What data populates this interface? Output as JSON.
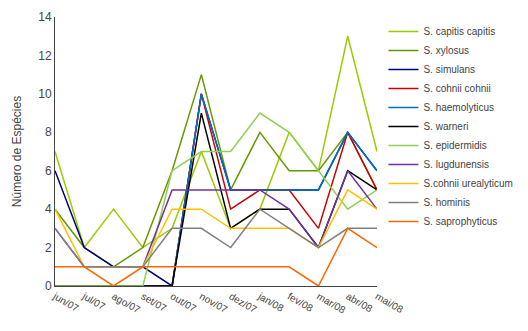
{
  "chart_data": {
    "type": "line",
    "categories": [
      "jun/07",
      "jul/07",
      "ago/07",
      "set/07",
      "out/07",
      "nov/07",
      "dez/07",
      "jan/08",
      "fev/08",
      "mar/08",
      "abr/08",
      "mai/08"
    ],
    "series": [
      {
        "name": "S. capitis capitis",
        "color": "#99cc00",
        "values": [
          7,
          2,
          4,
          2,
          3,
          7,
          3,
          4,
          8,
          6,
          13,
          7
        ]
      },
      {
        "name": "S. xylosus",
        "color": "#669900",
        "values": [
          4,
          2,
          1,
          2,
          6,
          11,
          5,
          8,
          6,
          6,
          8,
          5
        ]
      },
      {
        "name": "S. simulans",
        "color": "#000080",
        "values": [
          6,
          2,
          1,
          1,
          0,
          10,
          5,
          5,
          5,
          5,
          8,
          6
        ]
      },
      {
        "name": "S. cohnii cohnii",
        "color": "#cc0000",
        "values": [
          0,
          0,
          0,
          0,
          0,
          10,
          4,
          5,
          5,
          3,
          8,
          5
        ]
      },
      {
        "name": "S. haemolyticus",
        "color": "#0070c0",
        "values": [
          0,
          0,
          0,
          0,
          0,
          10,
          5,
          5,
          5,
          5,
          8,
          6
        ]
      },
      {
        "name": "S. warneri",
        "color": "#000000",
        "values": [
          0,
          0,
          0,
          0,
          0,
          9,
          3,
          4,
          4,
          2,
          6,
          5
        ]
      },
      {
        "name": "S. epidermidis",
        "color": "#92d050",
        "values": [
          0,
          0,
          0,
          0,
          6,
          7,
          7,
          9,
          8,
          6,
          4,
          5
        ]
      },
      {
        "name": "S. lugdunensis",
        "color": "#7030a0",
        "values": [
          3,
          1,
          1,
          1,
          5,
          5,
          5,
          5,
          4,
          2,
          6,
          4
        ]
      },
      {
        "name": "S.cohnii urealyticum",
        "color": "#ffc000",
        "values": [
          4,
          1,
          1,
          1,
          4,
          4,
          3,
          3,
          3,
          2,
          5,
          4
        ]
      },
      {
        "name": "S. hominis",
        "color": "#808080",
        "values": [
          3,
          1,
          1,
          1,
          3,
          3,
          2,
          4,
          3,
          2,
          3,
          3
        ]
      },
      {
        "name": "S. saprophyticus",
        "color": "#ff6600",
        "values": [
          1,
          1,
          0,
          1,
          1,
          1,
          1,
          1,
          1,
          0,
          3,
          2
        ]
      }
    ],
    "ylabel": "Número de Espécies",
    "ylim": [
      0,
      14
    ],
    "yticks": [
      0,
      2,
      4,
      6,
      8,
      10,
      12,
      14
    ],
    "grid": false,
    "legend": "right"
  }
}
